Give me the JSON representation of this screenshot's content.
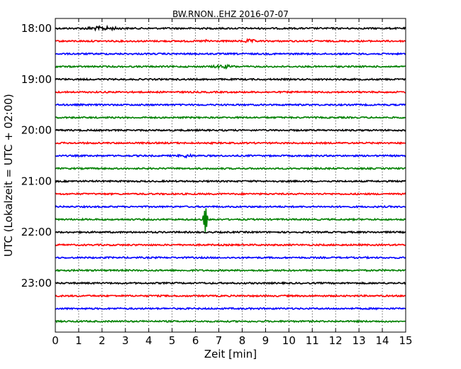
{
  "chart_data": {
    "type": "line",
    "title": "BW.RNON..EHZ 2016-07-07",
    "xlabel": "Zeit  [min]",
    "ylabel": "UTC (Lokalzeit = UTC + 02:00)",
    "xlim": [
      0,
      15
    ],
    "x_ticks": [
      0,
      1,
      2,
      3,
      4,
      5,
      6,
      7,
      8,
      9,
      10,
      11,
      12,
      13,
      14,
      15
    ],
    "y_tick_labels": [
      "18:00",
      "19:00",
      "20:00",
      "21:00",
      "22:00",
      "23:00"
    ],
    "grid": "vertical-dotted",
    "colors": [
      "#000000",
      "#ff0000",
      "#0000ff",
      "#008000"
    ],
    "traces": [
      {
        "start": "18:00",
        "color": "#000000",
        "events": [
          {
            "t": 2.0,
            "amp": 0.35,
            "dur": 1.0
          }
        ]
      },
      {
        "start": "18:15",
        "color": "#ff0000",
        "events": [
          {
            "t": 8.3,
            "amp": 0.3,
            "dur": 0.4
          },
          {
            "t": 6.5,
            "amp": 0.2,
            "dur": 0.3
          }
        ]
      },
      {
        "start": "18:30",
        "color": "#0000ff",
        "events": []
      },
      {
        "start": "18:45",
        "color": "#008000",
        "events": [
          {
            "t": 7.2,
            "amp": 0.3,
            "dur": 0.6
          }
        ]
      },
      {
        "start": "19:00",
        "color": "#000000",
        "events": []
      },
      {
        "start": "19:15",
        "color": "#ff0000",
        "events": []
      },
      {
        "start": "19:30",
        "color": "#0000ff",
        "events": []
      },
      {
        "start": "19:45",
        "color": "#008000",
        "events": []
      },
      {
        "start": "20:00",
        "color": "#000000",
        "events": []
      },
      {
        "start": "20:15",
        "color": "#ff0000",
        "events": []
      },
      {
        "start": "20:30",
        "color": "#0000ff",
        "events": [
          {
            "t": 5.6,
            "amp": 0.3,
            "dur": 0.4
          }
        ]
      },
      {
        "start": "20:45",
        "color": "#008000",
        "events": []
      },
      {
        "start": "21:00",
        "color": "#000000",
        "events": []
      },
      {
        "start": "21:15",
        "color": "#ff0000",
        "events": []
      },
      {
        "start": "21:30",
        "color": "#0000ff",
        "events": []
      },
      {
        "start": "21:45",
        "color": "#008000",
        "events": [
          {
            "t": 6.42,
            "amp": 4.0,
            "dur": 0.12,
            "spike": true
          }
        ]
      },
      {
        "start": "22:00",
        "color": "#000000",
        "events": []
      },
      {
        "start": "22:15",
        "color": "#ff0000",
        "events": []
      },
      {
        "start": "22:30",
        "color": "#0000ff",
        "events": []
      },
      {
        "start": "22:45",
        "color": "#008000",
        "events": []
      },
      {
        "start": "23:00",
        "color": "#000000",
        "events": []
      },
      {
        "start": "23:15",
        "color": "#ff0000",
        "events": []
      },
      {
        "start": "23:30",
        "color": "#0000ff",
        "events": []
      },
      {
        "start": "23:45",
        "color": "#008000",
        "events": []
      }
    ]
  }
}
